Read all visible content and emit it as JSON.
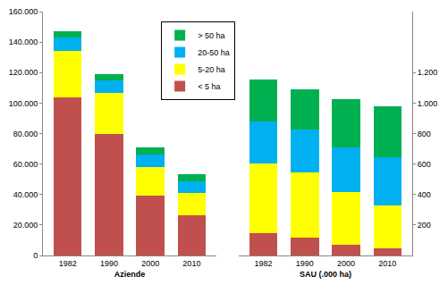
{
  "chart_data": [
    {
      "type": "bar",
      "stacked": true,
      "x_label": "Aziende",
      "categories": [
        "1982",
        "1990",
        "2000",
        "2010"
      ],
      "series": [
        {
          "name": "< 5 ha",
          "color": "#c0504d",
          "values": [
            104000,
            80000,
            39500,
            26500
          ]
        },
        {
          "name": "5-20 ha",
          "color": "#ffff00",
          "values": [
            30000,
            26500,
            18500,
            14500
          ]
        },
        {
          "name": "20-50 ha",
          "color": "#00b0f0",
          "values": [
            9000,
            8500,
            8500,
            7500
          ]
        },
        {
          "name": "> 50 ha",
          "color": "#00b050",
          "values": [
            4000,
            4000,
            4500,
            5000
          ]
        }
      ],
      "ylim": [
        0,
        160000
      ],
      "yticks": [
        0,
        {
          "value": 20000,
          "label": "20.000"
        },
        {
          "value": 40000,
          "label": "40.000"
        },
        {
          "value": 60000,
          "label": "60.000"
        },
        {
          "value": 80000,
          "label": "80.000"
        },
        {
          "value": 100000,
          "label": "100.000"
        },
        {
          "value": 120000,
          "label": "120.000"
        },
        {
          "value": 140000,
          "label": "140.000"
        },
        {
          "value": 160000,
          "label": "160.000"
        }
      ],
      "grid": false,
      "legend": "top"
    },
    {
      "type": "bar",
      "stacked": true,
      "x_label": "SAU (.000 ha)",
      "categories": [
        "1982",
        "1990",
        "2000",
        "2010"
      ],
      "series": [
        {
          "name": "< 5 ha",
          "color": "#c0504d",
          "values": [
            148,
            119,
            68,
            45
          ]
        },
        {
          "name": "5-20 ha",
          "color": "#ffff00",
          "values": [
            454,
            426,
            347,
            285
          ]
        },
        {
          "name": "20-50 ha",
          "color": "#00b0f0",
          "values": [
            278,
            279,
            295,
            312
          ]
        },
        {
          "name": "> 50 ha",
          "color": "#00b050",
          "values": [
            273,
            267,
            313,
            335
          ]
        }
      ],
      "ylim": [
        0,
        1600
      ],
      "yticks": [
        200,
        400,
        600,
        800,
        {
          "value": 1000,
          "label": "1.000"
        },
        {
          "value": 1200,
          "label": "1.200"
        }
      ],
      "grid": false
    }
  ]
}
